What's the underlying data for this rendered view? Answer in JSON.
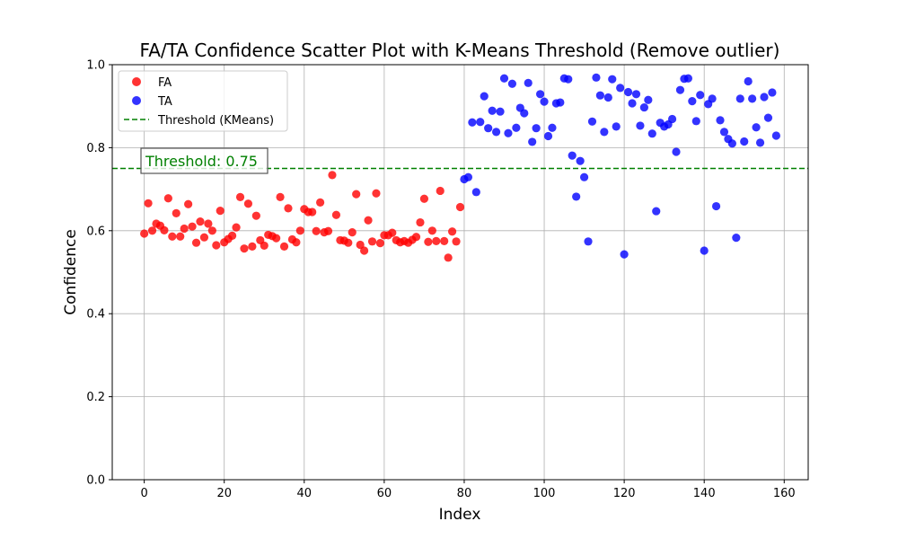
{
  "chart_data": {
    "type": "scatter",
    "title": "FA/TA Confidence Scatter Plot with K-Means Threshold (Remove outlier)",
    "xlabel": "Index",
    "ylabel": "Confidence",
    "xlim": [
      -8,
      166
    ],
    "ylim": [
      0.0,
      1.0
    ],
    "xticks": [
      0,
      20,
      40,
      60,
      80,
      100,
      120,
      140,
      160
    ],
    "yticks": [
      0.0,
      0.2,
      0.4,
      0.6,
      0.8,
      1.0
    ],
    "xtick_labels": [
      "0",
      "20",
      "40",
      "60",
      "80",
      "100",
      "120",
      "140",
      "160"
    ],
    "ytick_labels": [
      "0.0",
      "0.2",
      "0.4",
      "0.6",
      "0.8",
      "1.0"
    ],
    "grid": true,
    "legend_position": "top-left",
    "threshold": {
      "name": "Threshold (KMeans)",
      "value": 0.75,
      "color": "#008000",
      "annotation": "Threshold: 0.75"
    },
    "series": [
      {
        "name": "FA",
        "color": "#ff0000",
        "x": [
          0,
          1,
          2,
          3,
          4,
          5,
          6,
          7,
          8,
          9,
          10,
          11,
          12,
          13,
          14,
          15,
          16,
          17,
          18,
          19,
          20,
          21,
          22,
          23,
          24,
          25,
          26,
          27,
          28,
          29,
          30,
          31,
          32,
          33,
          34,
          35,
          36,
          37,
          38,
          39,
          40,
          41,
          42,
          43,
          44,
          45,
          46,
          47,
          48,
          49,
          50,
          51,
          52,
          53,
          54,
          55,
          56,
          57,
          58,
          59,
          60,
          61,
          62,
          63,
          64,
          65,
          66,
          67,
          68,
          69,
          70,
          71,
          72,
          73,
          74,
          75,
          76,
          77,
          78,
          79
        ],
        "y": [
          0.593,
          0.666,
          0.6,
          0.617,
          0.612,
          0.601,
          0.678,
          0.586,
          0.642,
          0.586,
          0.605,
          0.664,
          0.61,
          0.571,
          0.622,
          0.584,
          0.617,
          0.6,
          0.565,
          0.648,
          0.572,
          0.58,
          0.588,
          0.608,
          0.681,
          0.557,
          0.665,
          0.562,
          0.636,
          0.577,
          0.564,
          0.59,
          0.587,
          0.582,
          0.681,
          0.562,
          0.654,
          0.579,
          0.572,
          0.6,
          0.652,
          0.645,
          0.645,
          0.599,
          0.668,
          0.596,
          0.599,
          0.734,
          0.638,
          0.577,
          0.576,
          0.571,
          0.596,
          0.688,
          0.566,
          0.552,
          0.625,
          0.574,
          0.69,
          0.57,
          0.589,
          0.589,
          0.595,
          0.577,
          0.572,
          0.575,
          0.571,
          0.578,
          0.585,
          0.62,
          0.677,
          0.573,
          0.6,
          0.575,
          0.696,
          0.575,
          0.535,
          0.598,
          0.574,
          0.657
        ]
      },
      {
        "name": "TA",
        "color": "#0000ff",
        "x": [
          80,
          81,
          82,
          83,
          84,
          85,
          86,
          87,
          88,
          89,
          90,
          91,
          92,
          93,
          94,
          95,
          96,
          97,
          98,
          99,
          100,
          101,
          102,
          103,
          104,
          105,
          106,
          107,
          108,
          109,
          110,
          111,
          112,
          113,
          114,
          115,
          116,
          117,
          118,
          119,
          120,
          121,
          122,
          123,
          124,
          125,
          126,
          127,
          128,
          129,
          130,
          131,
          132,
          133,
          134,
          135,
          136,
          137,
          138,
          139,
          140,
          141,
          142,
          143,
          144,
          145,
          146,
          147,
          148,
          149,
          150,
          151,
          152,
          153,
          154,
          155,
          156,
          157,
          158
        ],
        "y": [
          0.724,
          0.729,
          0.861,
          0.693,
          0.862,
          0.924,
          0.847,
          0.889,
          0.838,
          0.887,
          0.967,
          0.835,
          0.954,
          0.848,
          0.896,
          0.883,
          0.956,
          0.814,
          0.847,
          0.929,
          0.911,
          0.828,
          0.848,
          0.907,
          0.909,
          0.967,
          0.965,
          0.781,
          0.682,
          0.768,
          0.729,
          0.574,
          0.863,
          0.969,
          0.926,
          0.838,
          0.921,
          0.965,
          0.851,
          0.944,
          0.543,
          0.934,
          0.907,
          0.929,
          0.853,
          0.897,
          0.915,
          0.834,
          0.647,
          0.86,
          0.851,
          0.856,
          0.869,
          0.79,
          0.939,
          0.966,
          0.967,
          0.912,
          0.864,
          0.927,
          0.552,
          0.905,
          0.918,
          0.659,
          0.866,
          0.838,
          0.821,
          0.81,
          0.583,
          0.918,
          0.815,
          0.96,
          0.918,
          0.849,
          0.812,
          0.922,
          0.872,
          0.933,
          0.829
        ]
      }
    ]
  }
}
